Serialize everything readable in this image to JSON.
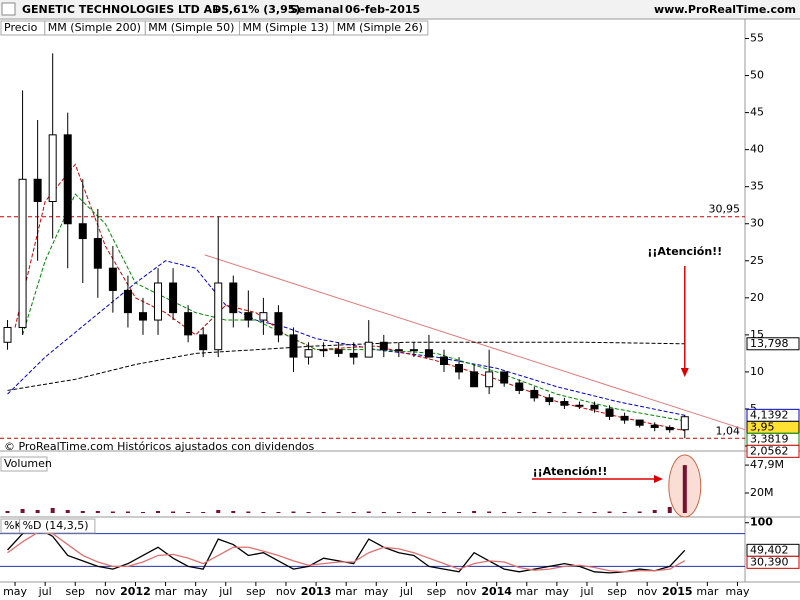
{
  "chart_data": [
    {
      "type": "candlestick",
      "title": "GENETIC TECHNOLOGIES LTD ADS",
      "subtitle": "+5,61% (3,95)",
      "period": "Semanal",
      "date": "06-feb-2015",
      "source": "www.ProRealTime.com",
      "footer": "© ProRealTime.com Históricos ajustados con dividendos",
      "name": "Precio",
      "x": [
        3.5,
        4.5,
        5.5,
        6.5,
        7.5,
        8.5,
        9.5,
        10.5,
        11.5,
        12.5,
        13.5,
        14.5,
        15.5,
        16.5,
        17.5,
        18.5,
        19.5,
        20.5,
        21.5,
        22.5,
        23.5,
        24.5,
        25.5,
        26.5,
        27.5,
        28.5,
        29.5,
        30.5,
        31.5,
        32.5,
        33.5,
        34.5,
        35.5,
        36.5,
        37.5,
        38.5,
        39.5,
        40.5,
        41.5,
        42.5,
        43.5,
        44.5,
        45.5,
        46.5,
        47.5,
        48.5
      ],
      "open": [
        14,
        16,
        36,
        33,
        42,
        30,
        28,
        24,
        21,
        18,
        17,
        22,
        18,
        15,
        13,
        22,
        18,
        17,
        18,
        15,
        12,
        13,
        13,
        12.5,
        12,
        14,
        13,
        13,
        13,
        12,
        11,
        10,
        8,
        10,
        8.5,
        7.5,
        6.5,
        6,
        5.5,
        5.5,
        5,
        4,
        3.5,
        2.8,
        2.5,
        2.2
      ],
      "high": [
        17,
        48,
        44,
        53,
        45,
        36,
        32,
        27,
        23,
        20,
        24,
        24,
        19,
        16,
        31,
        23,
        21,
        20,
        19,
        16,
        14,
        14,
        14,
        14,
        17,
        15,
        14,
        14,
        15,
        13,
        12,
        11,
        13,
        10,
        9,
        8,
        7,
        6.5,
        6,
        6,
        5.5,
        4.5,
        3.5,
        3.2,
        2.8,
        4.2
      ],
      "low": [
        13,
        15,
        25,
        28,
        24,
        22,
        20,
        18,
        16,
        15,
        15,
        17,
        14,
        12,
        12,
        16,
        16,
        15,
        14,
        10,
        11,
        12,
        12,
        11,
        12,
        12,
        12,
        12,
        12,
        10,
        9,
        8,
        7,
        8,
        7,
        6,
        5.5,
        5,
        5,
        4.5,
        3.5,
        3,
        2.5,
        2,
        1.8,
        1.04
      ],
      "close": [
        16,
        36,
        33,
        42,
        30,
        28,
        24,
        21,
        18,
        17,
        22,
        18,
        15,
        13,
        22,
        18,
        17,
        18,
        15,
        12,
        13,
        13,
        12.5,
        12,
        14,
        13,
        13,
        13,
        12,
        11,
        10,
        8,
        10,
        8.5,
        7.5,
        6.5,
        6,
        5.5,
        5.5,
        5,
        4,
        3.5,
        2.8,
        2.5,
        2.2,
        3.95
      ],
      "series": [
        {
          "name": "MM (Simple 200)",
          "color": "#000000",
          "x": [
            3.5,
            8,
            12,
            16,
            20,
            24,
            30,
            36,
            42,
            48.5
          ],
          "values": [
            7.5,
            9,
            11,
            12.5,
            13,
            13.5,
            14,
            14,
            14,
            13.798
          ]
        },
        {
          "name": "MM (Simple 50)",
          "color": "#0000cc",
          "x": [
            3.5,
            6,
            9,
            12,
            14,
            16,
            18,
            20,
            22,
            24,
            28,
            32,
            36,
            40,
            44,
            48.5
          ],
          "values": [
            7,
            12,
            17,
            22,
            25,
            24,
            19,
            17,
            16,
            14.5,
            13,
            12,
            10.5,
            8,
            6,
            4.1392
          ]
        },
        {
          "name": "MM (Simple 13)",
          "color": "#cc0000",
          "x": [
            4,
            6,
            8,
            10,
            12,
            14,
            16,
            18,
            20,
            22,
            24,
            28,
            32,
            36,
            40,
            44,
            48.5
          ],
          "values": [
            16,
            33,
            38,
            27,
            20,
            18,
            15,
            19,
            18,
            15,
            13,
            13.5,
            11.5,
            9,
            6,
            4,
            2.0562
          ]
        },
        {
          "name": "MM (Simple 26)",
          "color": "#008800",
          "x": [
            4.5,
            6,
            8,
            10,
            12,
            14,
            16,
            18,
            20,
            22,
            24,
            28,
            32,
            36,
            40,
            44,
            48.5
          ],
          "values": [
            15,
            25,
            34,
            30,
            22,
            20,
            18,
            17,
            17,
            15,
            13,
            13,
            12.5,
            10,
            7,
            5,
            3.3819
          ]
        }
      ],
      "hlines": [
        {
          "value": 30.95,
          "label": "30,95"
        },
        {
          "value": 1.04,
          "label": "1,04"
        }
      ],
      "trendline": {
        "x": [
          16.6,
          52.5
        ],
        "values": [
          25.8,
          2.2
        ]
      },
      "annotation": "¡¡Atención!!",
      "last_labels": [
        {
          "value": 13.798,
          "label": "13,798",
          "color": "#000000"
        },
        {
          "value": 4.1392,
          "label": "4,1392",
          "color": "#0000cc"
        },
        {
          "value": 3.95,
          "label": "3,95",
          "color": "#000000"
        },
        {
          "value": 3.3819,
          "label": "3,3819",
          "color": "#008800"
        },
        {
          "value": 2.0562,
          "label": "2,0562",
          "color": "#cc0000"
        }
      ],
      "xlim": [
        3,
        52.5
      ],
      "xticks": [
        {
          "value": 4,
          "label": "may"
        },
        {
          "value": 6,
          "label": "jul"
        },
        {
          "value": 8,
          "label": "sep"
        },
        {
          "value": 10,
          "label": "nov"
        },
        {
          "value": 12,
          "label": "2012"
        },
        {
          "value": 14,
          "label": "mar"
        },
        {
          "value": 16,
          "label": "may"
        },
        {
          "value": 18,
          "label": "jul"
        },
        {
          "value": 20,
          "label": "sep"
        },
        {
          "value": 22,
          "label": "nov"
        },
        {
          "value": 24,
          "label": "2013"
        },
        {
          "value": 26,
          "label": "mar"
        },
        {
          "value": 28,
          "label": "may"
        },
        {
          "value": 30,
          "label": "jul"
        },
        {
          "value": 32,
          "label": "sep"
        },
        {
          "value": 34,
          "label": "nov"
        },
        {
          "value": 36,
          "label": "2014"
        },
        {
          "value": 38,
          "label": "mar"
        },
        {
          "value": 40,
          "label": "may"
        },
        {
          "value": 42,
          "label": "jul"
        },
        {
          "value": 44,
          "label": "sep"
        },
        {
          "value": 46,
          "label": "nov"
        },
        {
          "value": 48,
          "label": "2015"
        },
        {
          "value": 50,
          "label": "mar"
        },
        {
          "value": 52,
          "label": "may"
        }
      ],
      "ylim": [
        0,
        57.5
      ],
      "yticks": [
        0,
        5,
        10,
        15,
        20,
        25,
        30,
        35,
        40,
        45,
        50,
        55
      ]
    },
    {
      "type": "bar",
      "title": "Volumen",
      "color": "#7a1030",
      "values": [
        2,
        4,
        3,
        5,
        3,
        2,
        2,
        1.5,
        1.5,
        1,
        2,
        1.5,
        1,
        1,
        3,
        2,
        1.5,
        1,
        1,
        1.5,
        1,
        1,
        1,
        1,
        1.5,
        1,
        1,
        1,
        1,
        1,
        1,
        2,
        1.5,
        1,
        1,
        1,
        1,
        0.8,
        1,
        1,
        1.5,
        1,
        1.5,
        3,
        6,
        47.9
      ],
      "annotation": "¡¡Atención!!",
      "ylim": [
        0,
        60
      ],
      "yticks": [
        {
          "value": 20,
          "label": "20M"
        },
        {
          "value": 47.9,
          "label": "47,9M"
        }
      ]
    },
    {
      "type": "line",
      "title": "%K",
      "series": [
        {
          "name": "%K",
          "color": "#000000",
          "values": [
            50,
            80,
            90,
            75,
            40,
            30,
            20,
            15,
            25,
            40,
            55,
            35,
            20,
            15,
            70,
            60,
            40,
            45,
            30,
            15,
            20,
            35,
            30,
            25,
            70,
            55,
            45,
            40,
            20,
            15,
            10,
            45,
            30,
            15,
            10,
            15,
            20,
            25,
            20,
            10,
            8,
            10,
            15,
            12,
            20,
            49.402
          ]
        },
        {
          "name": "%D (14,3,5)",
          "color": "#e07070",
          "values": [
            45,
            65,
            82,
            80,
            60,
            40,
            28,
            20,
            20,
            28,
            40,
            42,
            35,
            25,
            40,
            55,
            55,
            48,
            40,
            30,
            22,
            25,
            28,
            28,
            45,
            55,
            52,
            45,
            35,
            25,
            15,
            25,
            30,
            28,
            18,
            13,
            15,
            20,
            22,
            18,
            12,
            10,
            12,
            12,
            15,
            30.39
          ]
        }
      ],
      "levels": [
        20,
        80
      ],
      "last_labels": [
        {
          "value": 49.402,
          "label": "49,402",
          "color": "#000000"
        },
        {
          "value": 30.39,
          "label": "30,390",
          "color": "#cc0000"
        }
      ],
      "ylim": [
        -5,
        105
      ],
      "yticks": [
        100
      ]
    }
  ]
}
